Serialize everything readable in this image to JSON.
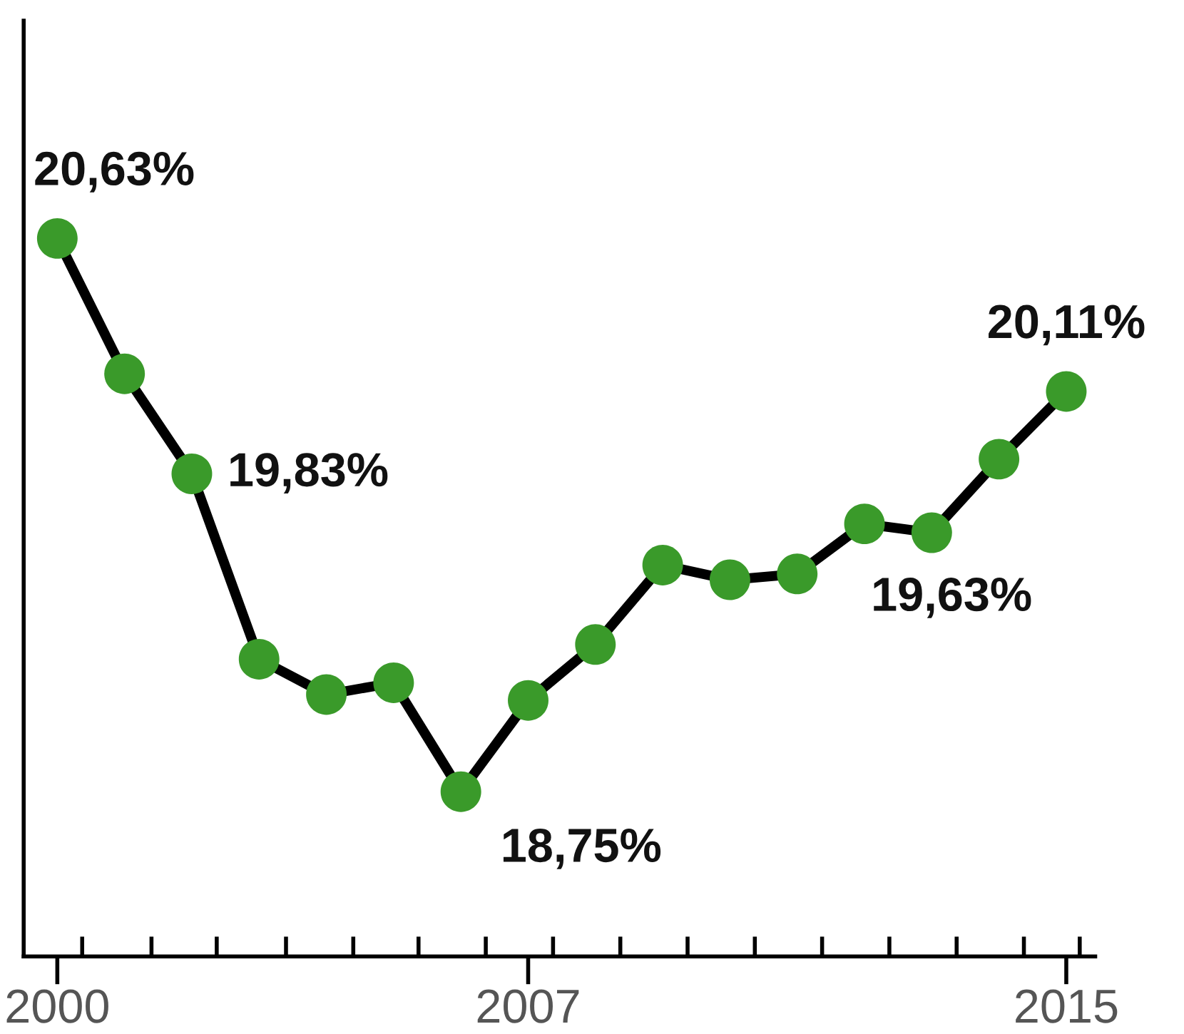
{
  "chart_data": {
    "type": "line",
    "x": [
      2000,
      2001,
      2002,
      2003,
      2004,
      2005,
      2006,
      2007,
      2008,
      2009,
      2010,
      2011,
      2012,
      2013,
      2014,
      2015
    ],
    "series": [
      {
        "color": "#000000",
        "colors": [
          "#3a9a2a",
          "#3a9a2a",
          "#3a9a2a",
          "#3a9a2a",
          "#3a9a2a",
          "#3a9a2a",
          "#3a9a2a",
          "#3a9a2a",
          "#3a9a2a",
          "#3a9a2a",
          "#3a9a2a",
          "#3a9a2a",
          "#3a9a2a",
          "#3a9a2a",
          "#3a9a2a",
          "#3a9a2a"
        ],
        "values": [
          20.63,
          20.17,
          19.83,
          19.2,
          19.08,
          19.12,
          18.75,
          19.06,
          19.25,
          19.52,
          19.47,
          19.49,
          19.66,
          19.63,
          19.88,
          20.11
        ],
        "value_labels": [
          "20,63%",
          null,
          "19,83%",
          null,
          null,
          null,
          "18,75%",
          null,
          null,
          null,
          null,
          null,
          null,
          "19,63%",
          null,
          "20,11%"
        ]
      }
    ],
    "marker": "circle",
    "line_style": "solid",
    "xlim": [
      1999.5,
      2015.43
    ],
    "xticks": [
      {
        "value": 2000,
        "label": "2000"
      },
      {
        "value": 2007,
        "label": "2007"
      },
      {
        "value": 2015,
        "label": "2015"
      },
      {
        "value": 2000.37,
        "label": null
      },
      {
        "value": 2001.4,
        "label": null
      },
      {
        "value": 2002.37,
        "label": null
      },
      {
        "value": 2003.4,
        "label": null
      },
      {
        "value": 2004.4,
        "label": null
      },
      {
        "value": 2005.37,
        "label": null
      },
      {
        "value": 2006.37,
        "label": null
      },
      {
        "value": 2007.37,
        "label": null
      },
      {
        "value": 2008.37,
        "label": null
      },
      {
        "value": 2009.37,
        "label": null
      },
      {
        "value": 2010.37,
        "label": null
      },
      {
        "value": 2011.37,
        "label": null
      },
      {
        "value": 2012.37,
        "label": null
      },
      {
        "value": 2013.37,
        "label": null
      },
      {
        "value": 2014.37,
        "label": null
      },
      {
        "value": 2015.2,
        "label": null
      }
    ],
    "ylim": [
      18.19,
      21.37
    ]
  }
}
